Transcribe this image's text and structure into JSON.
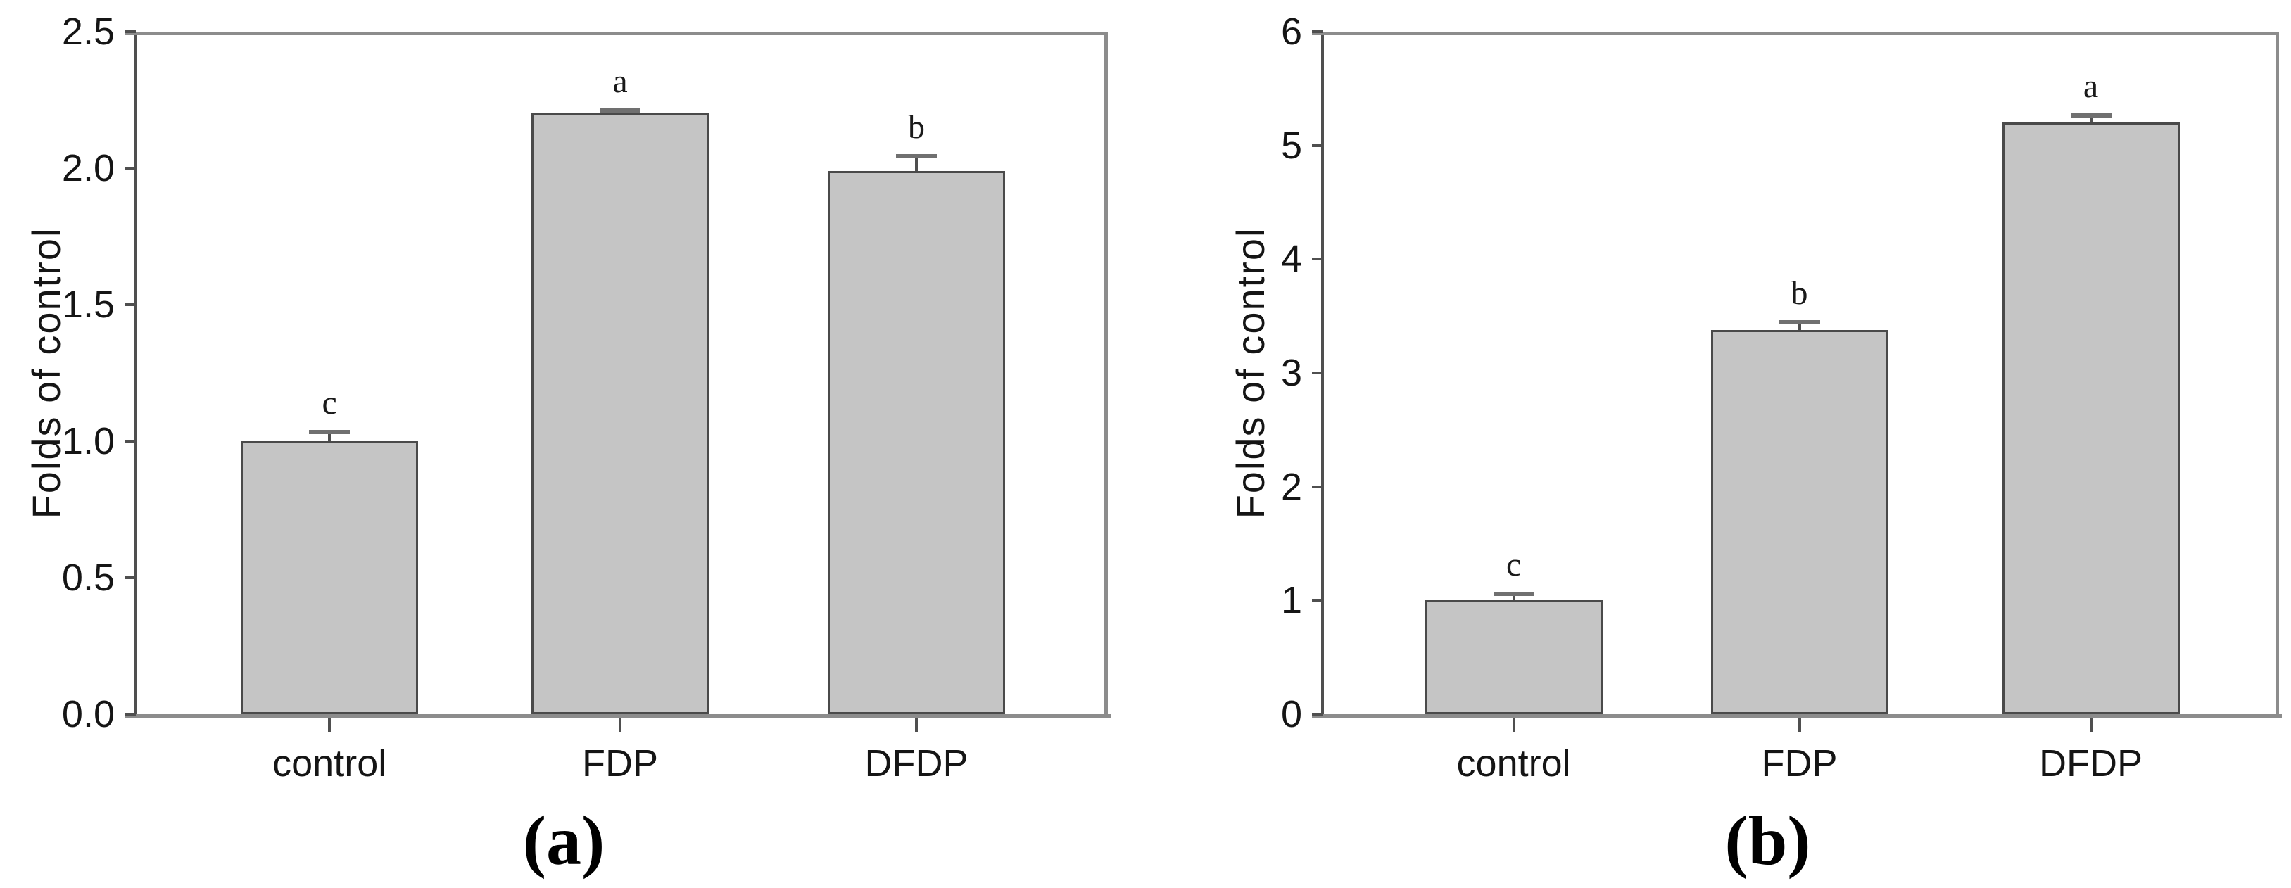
{
  "colors": {
    "background": "#ffffff",
    "bar_fill": "#c5c5c5",
    "bar_edge": "#4a4a4a",
    "frame": "#8c8c8c",
    "axis": "#4f4f4f",
    "error_cap": "#707070",
    "error_stem": "#4f4f4f",
    "text": "#151515"
  },
  "chart_data": [
    {
      "type": "bar",
      "panel_label": "(a)",
      "title": "",
      "xlabel": "",
      "ylabel": "Folds of control",
      "categories": [
        "control",
        "FDP",
        "DFDP"
      ],
      "values": [
        1.0,
        2.2,
        1.99
      ],
      "errors": [
        0.03,
        0.01,
        0.05
      ],
      "sig_letters": [
        "c",
        "a",
        "b"
      ],
      "ylim": [
        0,
        2.5
      ],
      "ytick_values": [
        0,
        0.5,
        1,
        1.5,
        2,
        2.5
      ],
      "ytick_labels": [
        "0.0",
        "0.5",
        "1.0",
        "1.5",
        "2.0",
        "2.5"
      ],
      "grid": false,
      "legend": false
    },
    {
      "type": "bar",
      "panel_label": "(b)",
      "title": "",
      "xlabel": "",
      "ylabel": "Folds of control",
      "categories": [
        "control",
        "FDP",
        "DFDP"
      ],
      "values": [
        1.01,
        3.38,
        5.2
      ],
      "errors": [
        0.04,
        0.06,
        0.06
      ],
      "sig_letters": [
        "c",
        "b",
        "a"
      ],
      "ylim": [
        0,
        6
      ],
      "ytick_values": [
        0,
        1,
        2,
        3,
        4,
        5,
        6
      ],
      "ytick_labels": [
        "0",
        "1",
        "2",
        "3",
        "4",
        "5",
        "6"
      ],
      "grid": false,
      "legend": false
    }
  ]
}
